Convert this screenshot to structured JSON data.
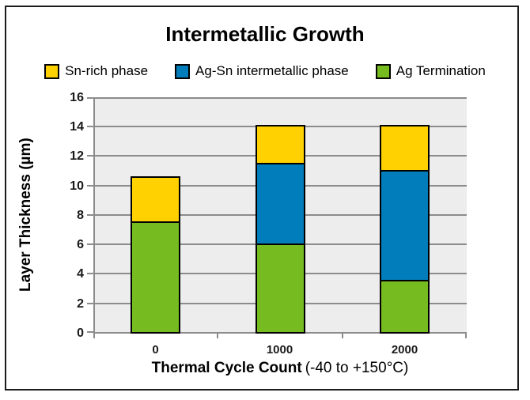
{
  "chart_data": {
    "type": "bar",
    "stacked": true,
    "title": "Intermetallic Growth",
    "categories": [
      "0",
      "1000",
      "2000"
    ],
    "series": [
      {
        "name": "Ag Termination",
        "color": "#76BC21",
        "values": [
          7.5,
          6,
          3.5
        ]
      },
      {
        "name": "Ag-Sn intermetallic phase",
        "color": "#007DBA",
        "values": [
          0,
          5.5,
          7.5
        ]
      },
      {
        "name": "Sn-rich phase",
        "color": "#FFD100",
        "values": [
          3,
          2.5,
          3
        ]
      }
    ],
    "legend_order": [
      2,
      1,
      0
    ],
    "legend_position": "top",
    "xlabel_bold": "Thermal Cycle Count",
    "xlabel_note": "(-40 to +150°C)",
    "ylabel": "Layer Thickness (µm)",
    "ylim": [
      0,
      16
    ],
    "y_ticks": [
      0,
      2,
      4,
      6,
      8,
      10,
      12,
      14,
      16
    ],
    "grid": true,
    "colors": {
      "plot_bg": "#EDEDED",
      "grid": "#8C8C8C",
      "bar_border": "#000000",
      "frame_border": "#1C1C1C",
      "text": "#000000"
    }
  }
}
